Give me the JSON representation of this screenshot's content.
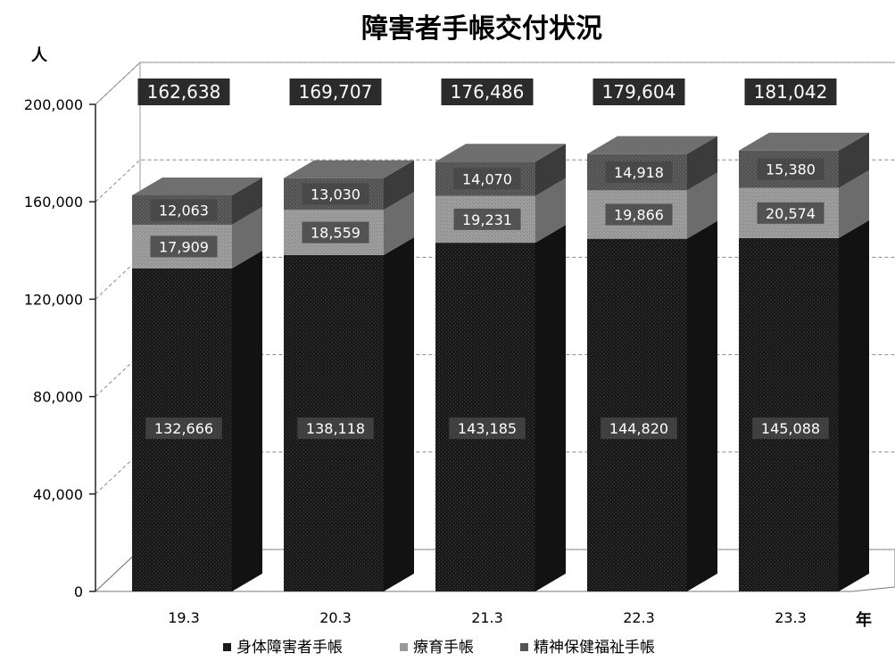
{
  "chart_data": {
    "type": "bar",
    "stacked": true,
    "three_d": true,
    "title": "障害者手帳交付状況",
    "ylabel": "人",
    "xlabel": "年",
    "categories": [
      "19.3",
      "20.3",
      "21.3",
      "22.3",
      "23.3"
    ],
    "ylim": [
      0,
      200000
    ],
    "yticks": [
      0,
      40000,
      80000,
      120000,
      160000,
      200000
    ],
    "ytick_labels": [
      "0",
      "40,000",
      "80,000",
      "120,000",
      "160,000",
      "200,000"
    ],
    "grid": true,
    "legend_position": "bottom",
    "series": [
      {
        "name": "身体障害者手帳",
        "values": [
          132666,
          138118,
          143185,
          144820,
          145088
        ],
        "value_labels": [
          "132,666",
          "138,118",
          "143,185",
          "144,820",
          "145,088"
        ],
        "color": "#1a1a1a"
      },
      {
        "name": "療育手帳",
        "values": [
          17909,
          18559,
          19231,
          19866,
          20574
        ],
        "value_labels": [
          "17,909",
          "18,559",
          "19,231",
          "19,866",
          "20,574"
        ],
        "color": "#9a9a9a"
      },
      {
        "name": "精神保健福祉手帳",
        "values": [
          12063,
          13030,
          14070,
          14918,
          15380
        ],
        "value_labels": [
          "12,063",
          "13,030",
          "14,070",
          "14,918",
          "15,380"
        ],
        "color": "#555555"
      }
    ],
    "totals": [
      162638,
      169707,
      176486,
      179604,
      181042
    ],
    "total_labels": [
      "162,638",
      "169,707",
      "176,486",
      "179,604",
      "181,042"
    ]
  }
}
